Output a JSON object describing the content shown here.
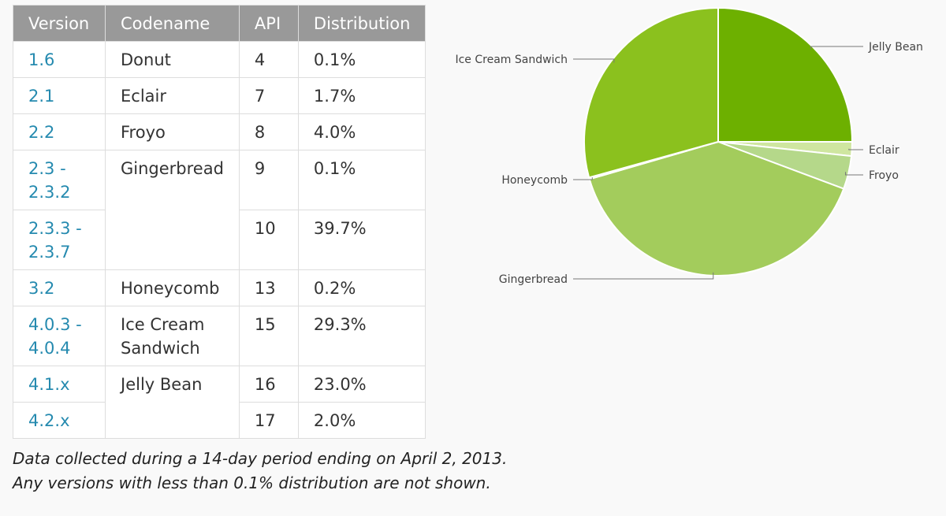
{
  "table": {
    "headers": [
      "Version",
      "Codename",
      "API",
      "Distribution"
    ],
    "rows": [
      {
        "version": "1.6",
        "codename": "Donut",
        "api": "4",
        "distribution": "0.1%"
      },
      {
        "version": "2.1",
        "codename": "Eclair",
        "api": "7",
        "distribution": "1.7%"
      },
      {
        "version": "2.2",
        "codename": "Froyo",
        "api": "8",
        "distribution": "4.0%"
      },
      {
        "version": "2.3 - 2.3.2",
        "codename": "Gingerbread",
        "api": "9",
        "distribution": "0.1%"
      },
      {
        "version": "2.3.3 - 2.3.7",
        "codename": "",
        "api": "10",
        "distribution": "39.7%"
      },
      {
        "version": "3.2",
        "codename": "Honeycomb",
        "api": "13",
        "distribution": "0.2%"
      },
      {
        "version": "4.0.3 - 4.0.4",
        "codename": "Ice Cream Sandwich",
        "api": "15",
        "distribution": "29.3%"
      },
      {
        "version": "4.1.x",
        "codename": "Jelly Bean",
        "api": "16",
        "distribution": "23.0%"
      },
      {
        "version": "4.2.x",
        "codename": "",
        "api": "17",
        "distribution": "2.0%"
      }
    ]
  },
  "footnote": {
    "line1": "Data collected during a 14-day period ending on April 2, 2013.",
    "line2": "Any versions with less than 0.1% distribution are not shown."
  },
  "chart_data": {
    "type": "pie",
    "title": "",
    "slices": [
      {
        "label": "Jelly Bean",
        "value": 25.0,
        "color": "#6db000"
      },
      {
        "label": "Eclair",
        "value": 1.7,
        "color": "#cfe6a0"
      },
      {
        "label": "Froyo",
        "value": 4.0,
        "color": "#b5d88a"
      },
      {
        "label": "Gingerbread",
        "value": 39.8,
        "color": "#a3cc5c"
      },
      {
        "label": "Honeycomb",
        "value": 0.2,
        "color": "#9ac24a"
      },
      {
        "label": "Ice Cream Sandwich",
        "value": 29.3,
        "color": "#8bc11e"
      }
    ],
    "start_angle_deg": 0,
    "direction": "clockwise"
  }
}
